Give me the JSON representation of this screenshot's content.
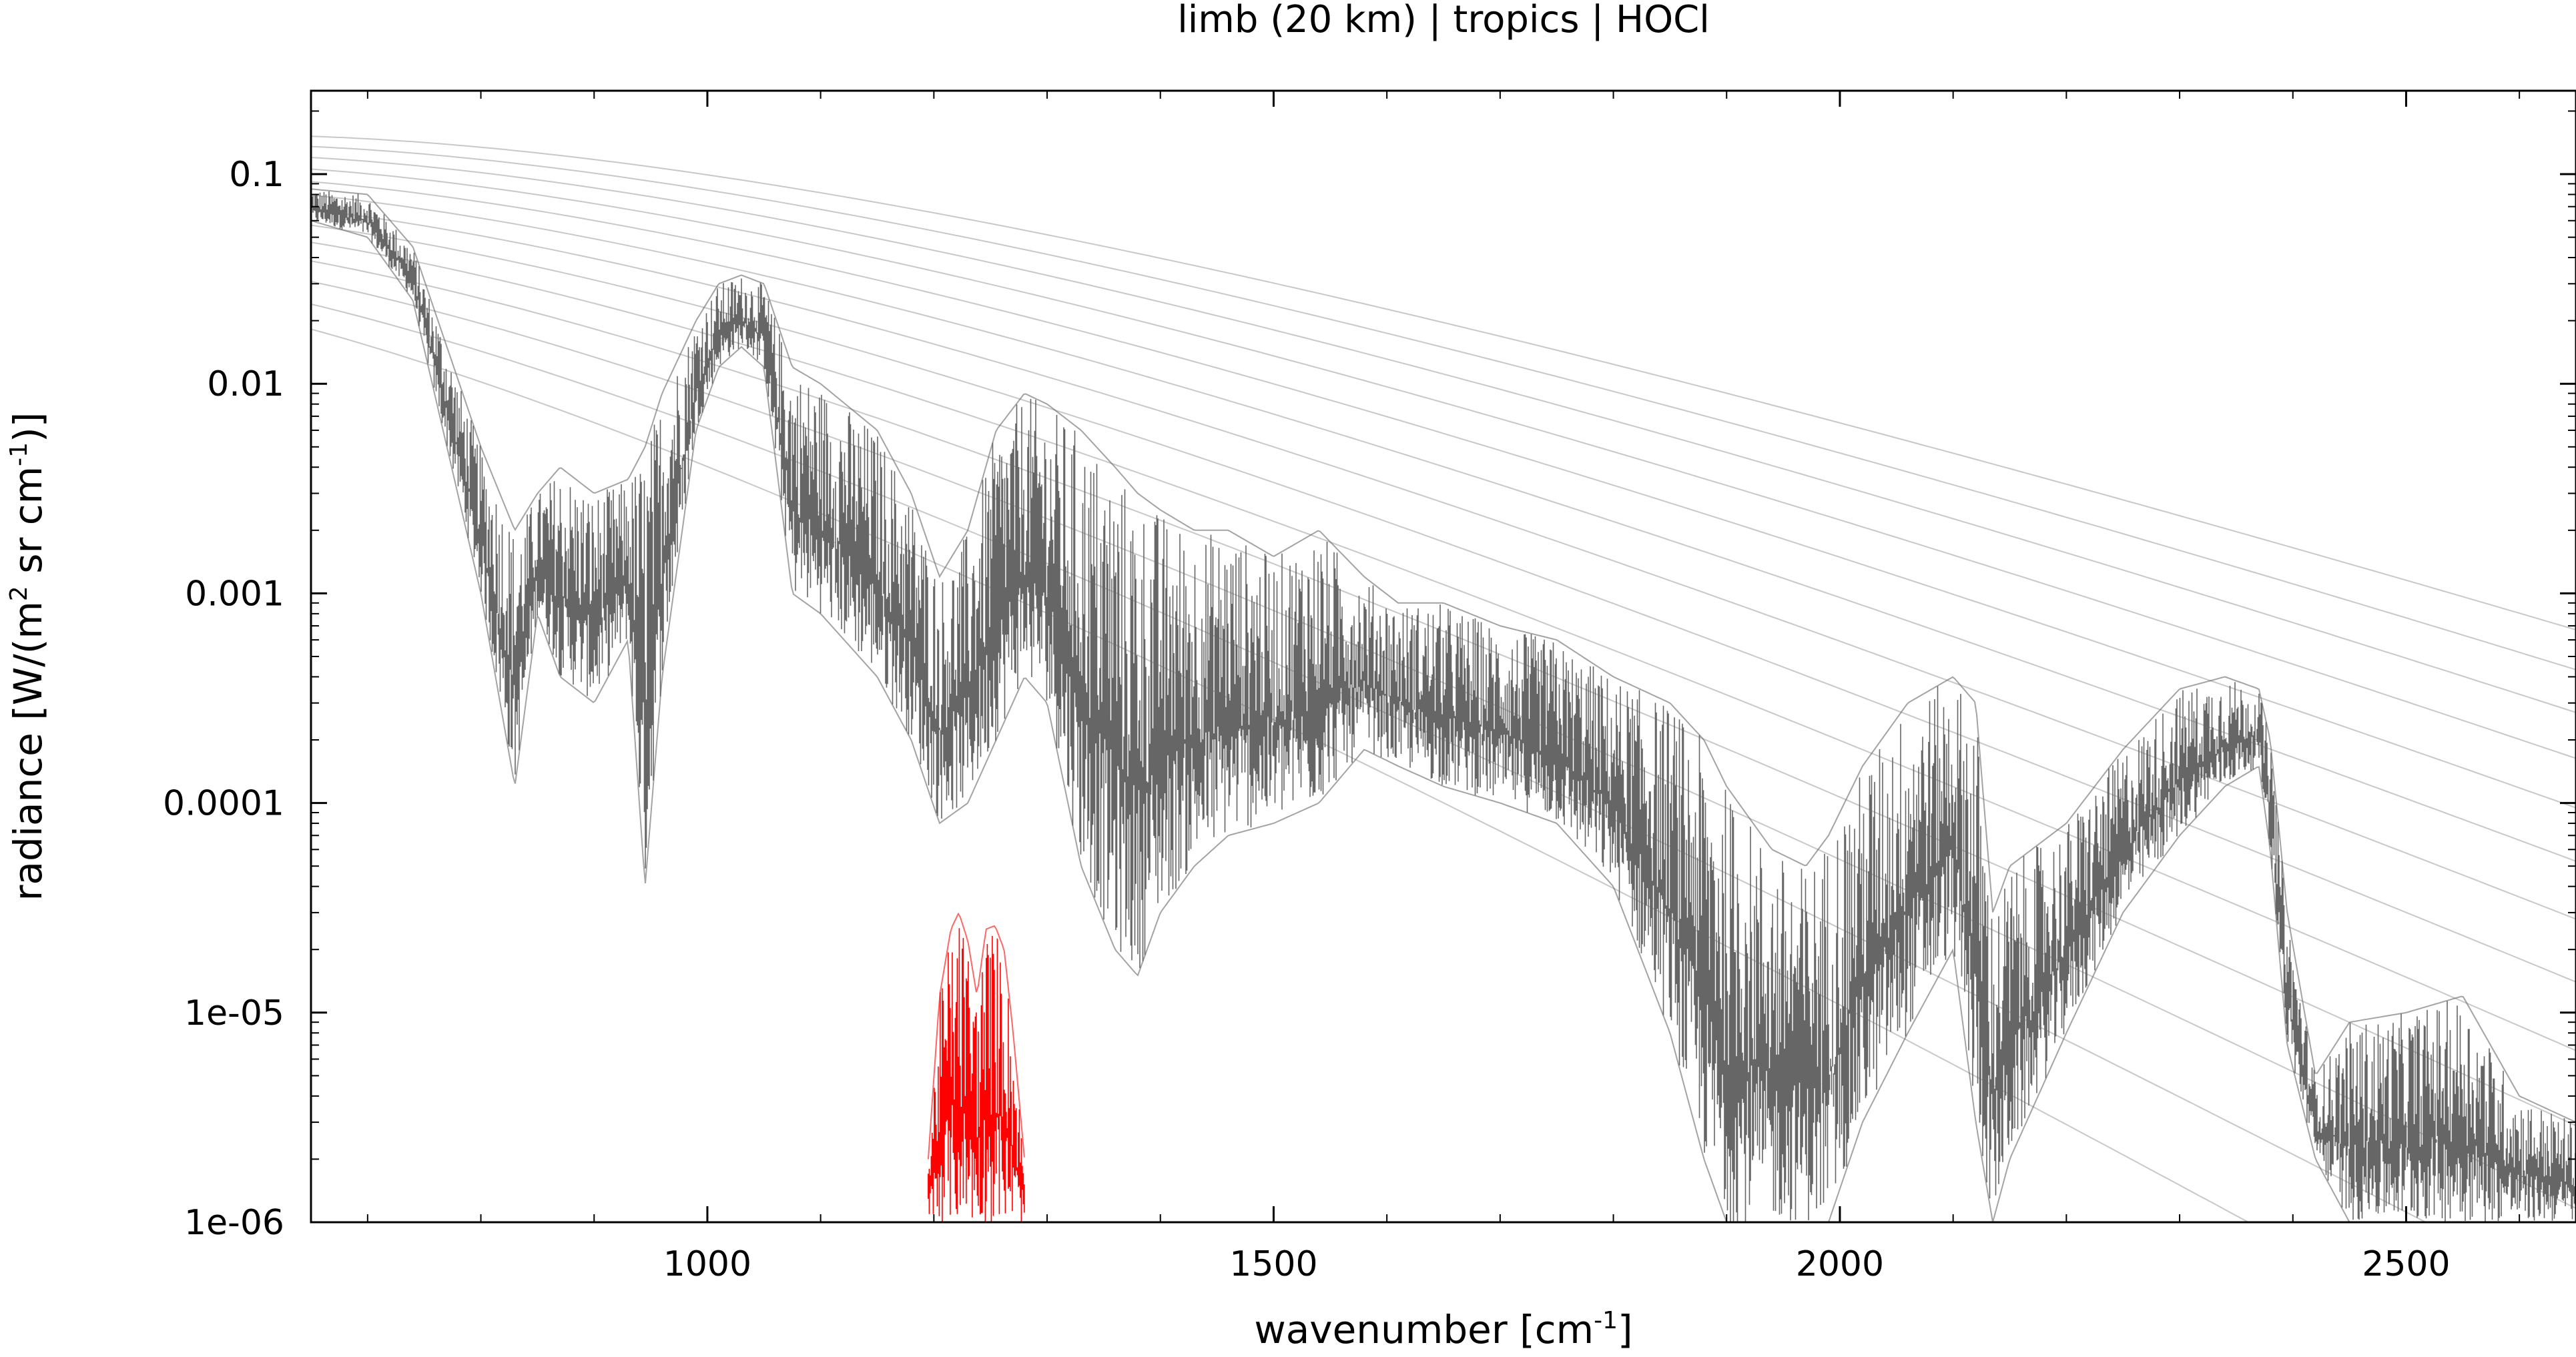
{
  "chart_data": {
    "type": "line",
    "title": "limb (20 km) | tropics | HOCl",
    "xlabel": "wavenumber [cm⁻¹]",
    "xlabel_parts": {
      "prefix": "wavenumber [cm",
      "sup": "-1",
      "suffix": "]"
    },
    "ylabel": "radiance [W/(m² sr cm⁻¹)]",
    "ylabel_parts": {
      "a": "radiance [W/(m",
      "sup1": "2",
      "b": " sr cm",
      "sup2": "-1",
      "c": ")]"
    },
    "xlim": [
      650,
      2650
    ],
    "ylim": [
      1e-06,
      0.25
    ],
    "yscale": "log",
    "grid": false,
    "legend": "none",
    "x_ticks": [
      1000,
      1500,
      2000,
      2500
    ],
    "x_tick_labels": [
      "1000",
      "1500",
      "2000",
      "2500"
    ],
    "y_ticks": [
      0.1,
      0.01,
      0.001,
      0.0001,
      1e-05,
      1e-06
    ],
    "y_tick_labels": [
      "0.1",
      "0.01",
      "0.001",
      "0.0001",
      "1e-05",
      "1e-06"
    ],
    "series": [
      {
        "color": "#666666",
        "envelope": {
          "x": [
            650,
            700,
            740,
            770,
            800,
            830,
            850,
            870,
            900,
            930,
            945,
            960,
            990,
            1010,
            1030,
            1050,
            1075,
            1100,
            1150,
            1180,
            1205,
            1230,
            1255,
            1280,
            1300,
            1330,
            1360,
            1380,
            1400,
            1430,
            1460,
            1500,
            1540,
            1580,
            1610,
            1650,
            1700,
            1750,
            1800,
            1850,
            1880,
            1900,
            1940,
            1970,
            1990,
            2020,
            2060,
            2100,
            2120,
            2135,
            2150,
            2200,
            2250,
            2300,
            2340,
            2370,
            2380,
            2395,
            2420,
            2450,
            2500,
            2550,
            2600,
            2650
          ],
          "upper": [
            0.085,
            0.08,
            0.045,
            0.015,
            0.005,
            0.002,
            0.003,
            0.004,
            0.003,
            0.0035,
            0.005,
            0.009,
            0.02,
            0.03,
            0.033,
            0.03,
            0.012,
            0.01,
            0.006,
            0.003,
            0.0012,
            0.002,
            0.006,
            0.009,
            0.008,
            0.006,
            0.004,
            0.003,
            0.0025,
            0.002,
            0.002,
            0.0015,
            0.002,
            0.0012,
            0.0009,
            0.0009,
            0.0007,
            0.0006,
            0.0004,
            0.0003,
            0.0002,
            0.00012,
            6e-05,
            5e-05,
            7e-05,
            0.00015,
            0.0003,
            0.0004,
            0.0003,
            3e-05,
            5e-05,
            8e-05,
            0.00018,
            0.00035,
            0.0004,
            0.00035,
            0.0002,
            3e-05,
            5e-06,
            9e-06,
            1e-05,
            1.2e-05,
            4e-06,
            3e-06
          ],
          "lower": [
            0.06,
            0.05,
            0.025,
            0.005,
            0.001,
            0.00012,
            0.0008,
            0.0004,
            0.0003,
            0.0006,
            4e-05,
            0.0004,
            0.006,
            0.012,
            0.015,
            0.012,
            0.001,
            0.0008,
            0.0004,
            0.0002,
            8e-05,
            0.0001,
            0.0002,
            0.0004,
            0.0003,
            5e-05,
            2e-05,
            1.5e-05,
            3e-05,
            5e-05,
            7e-05,
            8e-05,
            0.0001,
            0.00018,
            0.00015,
            0.00012,
            0.0001,
            8e-05,
            4e-05,
            8e-06,
            2e-06,
            1e-06,
            1e-06,
            1e-06,
            1e-06,
            3e-06,
            8e-06,
            2e-05,
            3e-06,
            1e-06,
            2e-06,
            8e-06,
            3e-05,
            7e-05,
            0.00012,
            0.00015,
            6e-05,
            7e-06,
            2e-06,
            1e-06,
            1e-06,
            1e-06,
            1e-06,
            1e-06
          ]
        }
      },
      {
        "color": "#ff0000",
        "envelope": {
          "x": [
            1195,
            1205,
            1215,
            1222,
            1230,
            1238,
            1246,
            1254,
            1262,
            1270,
            1280
          ],
          "upper": [
            2e-06,
            1.2e-05,
            2.5e-05,
            3e-05,
            2.2e-05,
            1.2e-05,
            2.5e-05,
            2.6e-05,
            2e-05,
            8e-06,
            2e-06
          ],
          "lower": [
            1e-06,
            1e-06,
            1e-06,
            1e-06,
            1e-06,
            1e-06,
            1e-06,
            1e-06,
            1e-06,
            1e-06,
            1e-06
          ]
        }
      }
    ],
    "reference_curves": {
      "color": "#c8c8c8",
      "description": "Planck radiance curves",
      "temperatures_K": [
        180,
        190,
        200,
        210,
        220,
        230,
        240,
        250,
        260,
        270,
        280,
        290,
        300
      ]
    }
  }
}
